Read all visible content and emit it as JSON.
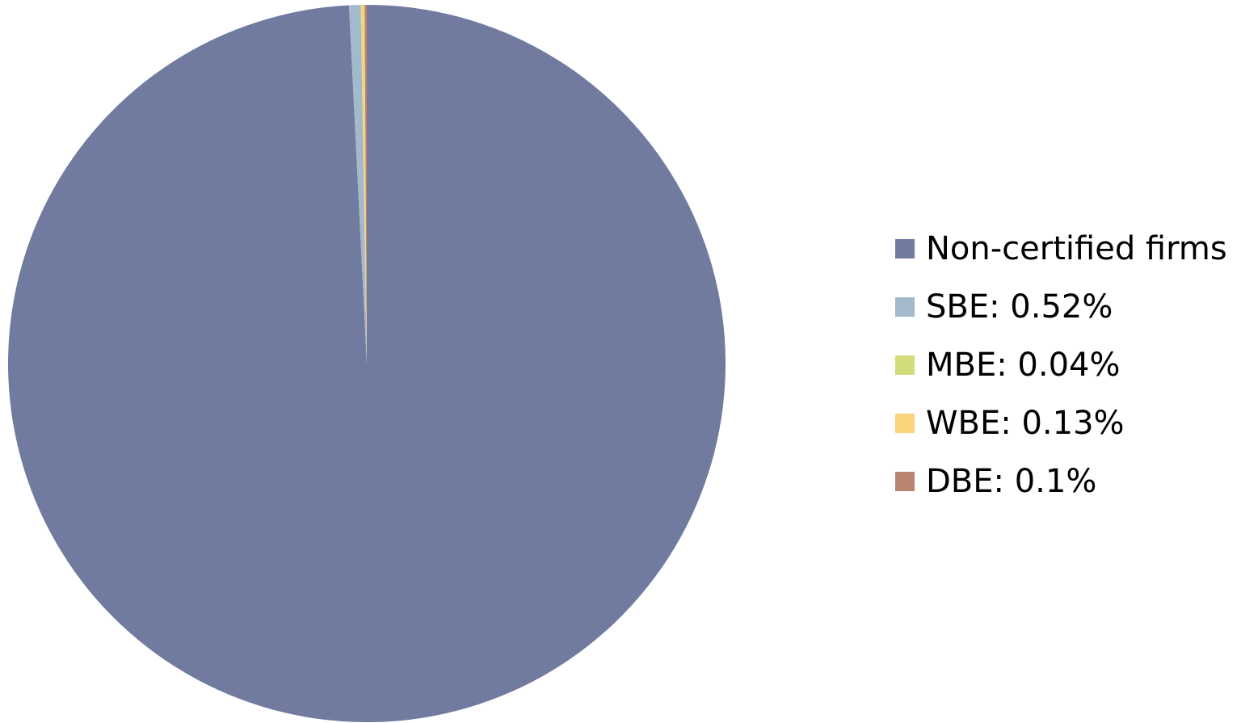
{
  "chart_data": {
    "type": "pie",
    "title": "",
    "start_angle_note": "clockwise from top",
    "slices": [
      {
        "name": "Non-certified firms",
        "legend_label": "Non-certified firms",
        "value": 99.21,
        "color": "#717ba0"
      },
      {
        "name": "SBE",
        "legend_label": "SBE:  0.52%",
        "value": 0.52,
        "color": "#a3b9cc"
      },
      {
        "name": "MBE",
        "legend_label": "MBE:  0.04%",
        "value": 0.04,
        "color": "#d3dc7a"
      },
      {
        "name": "WBE",
        "legend_label": "WBE:  0.13%",
        "value": 0.13,
        "color": "#fad47c"
      },
      {
        "name": "DBE",
        "legend_label": "DBE:  0.1%",
        "value": 0.1,
        "color": "#b98570"
      }
    ],
    "legend_position": "right"
  }
}
